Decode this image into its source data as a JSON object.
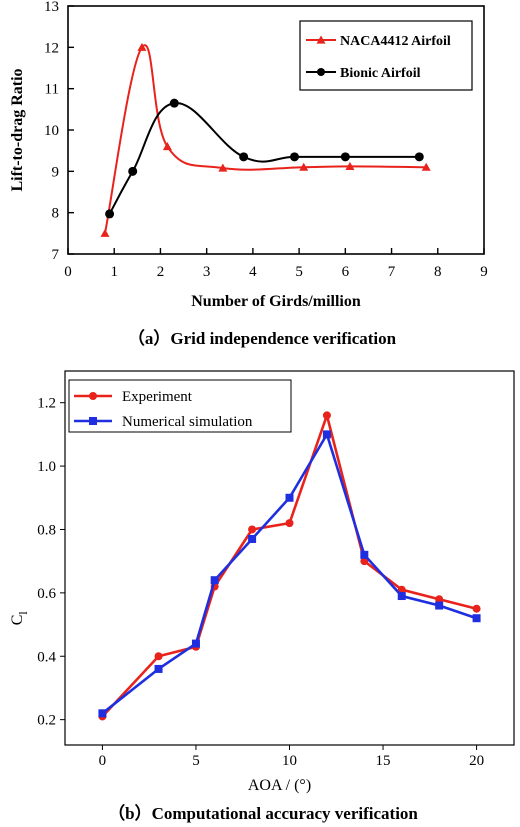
{
  "chart_data": [
    {
      "type": "line",
      "caption": "（a）Grid independence verification",
      "xlabel": "Number of Girds/million",
      "ylabel": "Lift-to-drag Ratio",
      "xlim": [
        0,
        9
      ],
      "ylim": [
        7,
        13
      ],
      "xticks": [
        0,
        1,
        2,
        3,
        4,
        5,
        6,
        7,
        8,
        9
      ],
      "yticks": [
        7,
        8,
        9,
        10,
        11,
        12,
        13
      ],
      "legend_position": "top-right",
      "series": [
        {
          "name": "NACA4412 Airfoil",
          "color": "#e8231c",
          "marker": "triangle",
          "points": [
            [
              0.8,
              7.5
            ],
            [
              1.6,
              12.0
            ],
            [
              2.15,
              9.6
            ],
            [
              3.35,
              9.08
            ],
            [
              5.1,
              9.1
            ],
            [
              6.1,
              9.12
            ],
            [
              7.75,
              9.1
            ]
          ]
        },
        {
          "name": "Bionic Airfoil",
          "color": "#000000",
          "marker": "circle",
          "points": [
            [
              0.9,
              7.97
            ],
            [
              1.4,
              9.0
            ],
            [
              2.3,
              10.65
            ],
            [
              3.8,
              9.35
            ],
            [
              4.9,
              9.35
            ],
            [
              6.0,
              9.35
            ],
            [
              7.6,
              9.35
            ]
          ]
        }
      ]
    },
    {
      "type": "line",
      "caption": "（b）Computational accuracy verification",
      "xlabel": "AOA / (°)",
      "ylabel": "Cl",
      "ylabel_main": "C",
      "ylabel_sub": "l",
      "xlim": [
        -2,
        22
      ],
      "ylim": [
        0.12,
        1.3
      ],
      "xticks": [
        0,
        5,
        10,
        15,
        20
      ],
      "yticks": [
        0.2,
        0.4,
        0.6,
        0.8,
        1.0,
        1.2
      ],
      "ytick_labels": [
        "0.2",
        "0.4",
        "0.6",
        "0.8",
        "1.0",
        "1.2"
      ],
      "legend_position": "top-left",
      "series": [
        {
          "name": "Experiment",
          "color": "#e8231c",
          "marker": "circle",
          "points": [
            [
              0,
              0.21
            ],
            [
              3,
              0.4
            ],
            [
              5,
              0.43
            ],
            [
              6,
              0.62
            ],
            [
              8,
              0.8
            ],
            [
              10,
              0.82
            ],
            [
              12,
              1.16
            ],
            [
              14,
              0.7
            ],
            [
              16,
              0.61
            ],
            [
              18,
              0.58
            ],
            [
              20,
              0.55
            ]
          ]
        },
        {
          "name": "Numerical simulation",
          "color": "#1f2fe0",
          "marker": "square",
          "points": [
            [
              0,
              0.22
            ],
            [
              3,
              0.36
            ],
            [
              5,
              0.44
            ],
            [
              6,
              0.64
            ],
            [
              8,
              0.77
            ],
            [
              10,
              0.9
            ],
            [
              12,
              1.1
            ],
            [
              14,
              0.72
            ],
            [
              16,
              0.59
            ],
            [
              18,
              0.56
            ],
            [
              20,
              0.52
            ]
          ]
        }
      ]
    }
  ]
}
